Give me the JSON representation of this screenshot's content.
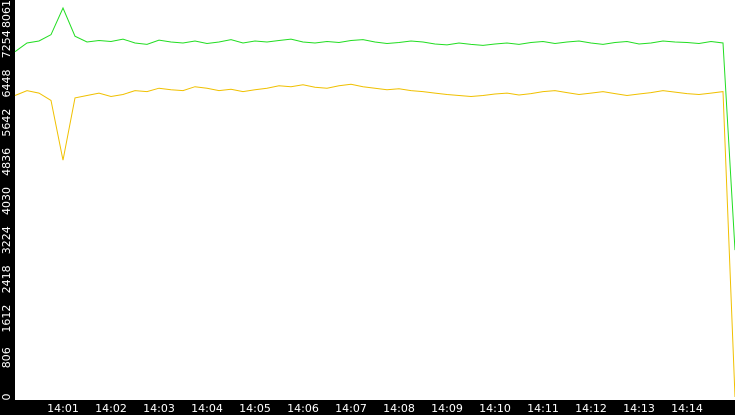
{
  "chart_data": {
    "type": "line",
    "categories": [
      null,
      null,
      null,
      null,
      "14:01",
      null,
      null,
      null,
      "14:02",
      null,
      null,
      null,
      "14:03",
      null,
      null,
      null,
      "14:04",
      null,
      null,
      null,
      "14:05",
      null,
      null,
      null,
      "14:06",
      null,
      null,
      null,
      "14:07",
      null,
      null,
      null,
      "14:08",
      null,
      null,
      null,
      "14:09",
      null,
      null,
      null,
      "14:10",
      null,
      null,
      null,
      "14:11",
      null,
      null,
      null,
      "14:12",
      null,
      null,
      null,
      "14:13",
      null,
      null,
      null,
      "14:14",
      null,
      null,
      null,
      null
    ],
    "series": [
      {
        "color": "#22dd22",
        "values": [
          7100,
          7280,
          7320,
          7450,
          8000,
          7420,
          7300,
          7330,
          7310,
          7360,
          7280,
          7250,
          7340,
          7300,
          7280,
          7320,
          7270,
          7300,
          7350,
          7280,
          7320,
          7300,
          7330,
          7360,
          7300,
          7280,
          7310,
          7290,
          7330,
          7350,
          7300,
          7270,
          7290,
          7320,
          7300,
          7260,
          7240,
          7280,
          7250,
          7230,
          7260,
          7280,
          7250,
          7290,
          7310,
          7270,
          7300,
          7320,
          7280,
          7250,
          7290,
          7310,
          7260,
          7280,
          7320,
          7300,
          7290,
          7270,
          7310,
          7280,
          3020
        ]
      },
      {
        "color": "#f0c000",
        "values": [
          6200,
          6300,
          6250,
          6100,
          4870,
          6150,
          6200,
          6250,
          6180,
          6220,
          6300,
          6280,
          6350,
          6320,
          6300,
          6380,
          6350,
          6300,
          6330,
          6280,
          6320,
          6350,
          6400,
          6380,
          6420,
          6370,
          6350,
          6400,
          6430,
          6380,
          6350,
          6320,
          6340,
          6300,
          6280,
          6250,
          6220,
          6200,
          6180,
          6200,
          6230,
          6250,
          6210,
          6240,
          6280,
          6300,
          6260,
          6220,
          6250,
          6280,
          6240,
          6200,
          6230,
          6260,
          6300,
          6270,
          6240,
          6220,
          6250,
          6280,
          0
        ]
      }
    ],
    "ylim": [
      0,
      8061
    ],
    "yticks": [
      0,
      806,
      1612,
      2418,
      3224,
      4030,
      4836,
      5642,
      6448,
      7254,
      8061
    ]
  }
}
